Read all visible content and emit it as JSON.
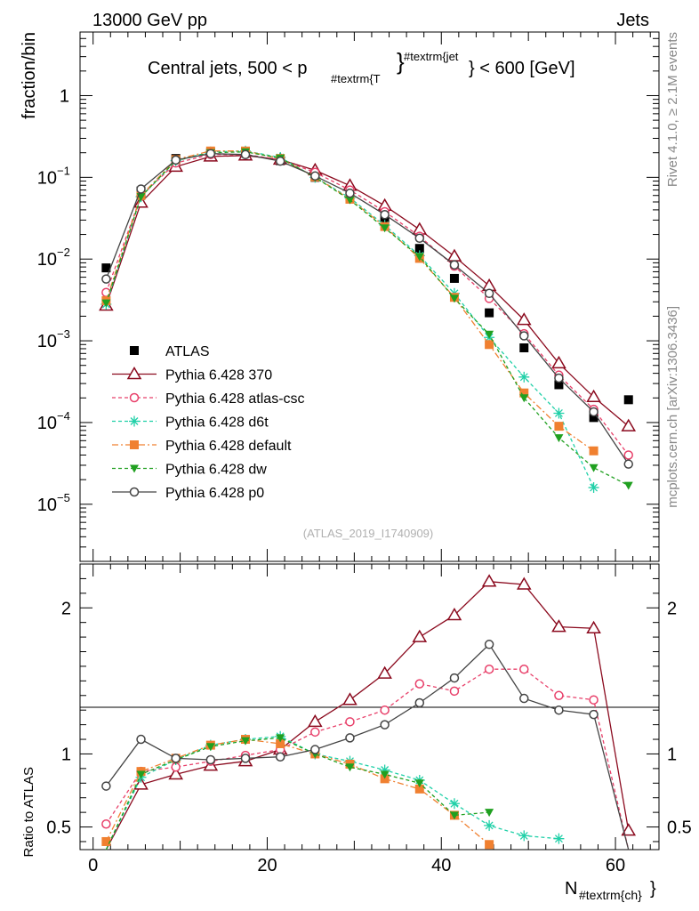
{
  "header": {
    "left": "13000 GeV pp",
    "right": "Jets"
  },
  "side": {
    "top": "Rivet 4.1.0, ≥ 2.1M events",
    "bottom": "mcplots.cern.ch [arXiv:1306.3436]"
  },
  "chart_data": [
    {
      "type": "scatter",
      "title_main": "Central jets, 500 < p",
      "title_sub": "#textrm{T",
      "title_sup": "#textrm{jet",
      "title_tail": "} < 600 [GeV]",
      "ylabel": "fraction/bin",
      "yscale": "log",
      "ylim": [
        2e-06,
        6
      ],
      "xlim": [
        -1.5,
        65
      ],
      "watermark": "(ATLAS_2019_I1740909)",
      "y_ticks": [
        {
          "v": 1,
          "label": "1"
        },
        {
          "v": 0.1,
          "label": "10",
          "exp": "−1"
        },
        {
          "v": 0.01,
          "label": "10",
          "exp": "−2"
        },
        {
          "v": 0.001,
          "label": "10",
          "exp": "−3"
        },
        {
          "v": 0.0001,
          "label": "10",
          "exp": "−4"
        },
        {
          "v": 1e-05,
          "label": "10",
          "exp": "−5"
        }
      ],
      "x": [
        1.5,
        5.5,
        9.5,
        13.5,
        17.5,
        21.5,
        25.5,
        29.5,
        33.5,
        37.5,
        41.5,
        45.5,
        49.5,
        53.5,
        57.5,
        61.5
      ],
      "series": [
        {
          "name": "ATLAS",
          "color": "#000000",
          "marker": "square",
          "dash": "none",
          "values": [
            0.0078,
            0.068,
            0.17,
            0.2,
            0.195,
            0.16,
            0.1,
            0.058,
            0.03,
            0.0135,
            0.0058,
            0.0022,
            0.00082,
            0.00029,
            0.000115,
            0.00019
          ]
        },
        {
          "name": "Pythia 6.428 370",
          "color": "#8b0a1e",
          "marker": "triangle-open",
          "dash": "none",
          "values": [
            0.0027,
            0.049,
            0.135,
            0.18,
            0.185,
            0.165,
            0.122,
            0.079,
            0.045,
            0.023,
            0.0108,
            0.0047,
            0.0018,
            0.00053,
            0.000205,
            9e-05
          ]
        },
        {
          "name": "Pythia 6.428 atlas-csc",
          "color": "#e8406a",
          "marker": "circle-open",
          "dash": "4,3",
          "values": [
            0.0039,
            0.059,
            0.15,
            0.19,
            0.19,
            0.165,
            0.115,
            0.07,
            0.038,
            0.019,
            0.0082,
            0.0033,
            0.00122,
            0.00038,
            0.000145,
            4e-05
          ]
        },
        {
          "name": "Pythia 6.428 d6t",
          "color": "#20d0a8",
          "marker": "star",
          "dash": "4,3",
          "values": [
            0.0028,
            0.058,
            0.16,
            0.205,
            0.21,
            0.175,
            0.1,
            0.056,
            0.026,
            0.011,
            0.0038,
            0.0011,
            0.00036,
            0.00013,
            1.6e-05,
            null
          ]
        },
        {
          "name": "Pythia 6.428 default",
          "color": "#f08030",
          "marker": "square",
          "dash": "7,3,2,3",
          "values": [
            0.0031,
            0.06,
            0.165,
            0.21,
            0.21,
            0.17,
            0.101,
            0.054,
            0.025,
            0.0102,
            0.0034,
            0.0009,
            0.00023,
            9e-05,
            4.5e-05,
            null
          ]
        },
        {
          "name": "Pythia 6.428 dw",
          "color": "#20a020",
          "marker": "triangle-down",
          "dash": "4,3",
          "values": [
            0.0029,
            0.058,
            0.16,
            0.2,
            0.205,
            0.172,
            0.1,
            0.053,
            0.024,
            0.0107,
            0.0033,
            0.0012,
            0.0002,
            6.5e-05,
            2.8e-05,
            1.7e-05
          ]
        },
        {
          "name": "Pythia 6.428 p0",
          "color": "#444444",
          "marker": "circle-open",
          "dash": "none",
          "values": [
            0.0057,
            0.072,
            0.163,
            0.195,
            0.19,
            0.158,
            0.104,
            0.064,
            0.035,
            0.018,
            0.0085,
            0.0038,
            0.00115,
            0.00035,
            0.000135,
            3.1e-05
          ]
        }
      ]
    },
    {
      "type": "line",
      "ylabel": "Ratio to ATLAS",
      "xlabel_main": "N",
      "xlabel_sub": "#textrm{ch}",
      "ylim": [
        0.345,
        2.3
      ],
      "xlim": [
        -1.5,
        65
      ],
      "x_ticks": [
        0,
        20,
        40,
        60
      ],
      "y_ticks": [
        {
          "v": 0.5,
          "label": "0.5"
        },
        {
          "v": 1,
          "label": "1"
        },
        {
          "v": 2,
          "label": "2"
        }
      ],
      "x": [
        1.5,
        5.5,
        9.5,
        13.5,
        17.5,
        21.5,
        25.5,
        29.5,
        33.5,
        37.5,
        41.5,
        45.5,
        49.5,
        53.5,
        57.5,
        61.5
      ],
      "series": [
        {
          "name": "Pythia 6.428 370",
          "values": [
            0.34,
            0.79,
            0.86,
            0.92,
            0.95,
            1.03,
            1.22,
            1.37,
            1.55,
            1.8,
            1.95,
            2.18,
            2.16,
            1.87,
            1.86,
            0.475
          ]
        },
        {
          "name": "Pythia 6.428 atlas-csc",
          "values": [
            0.52,
            0.88,
            0.91,
            0.95,
            0.99,
            1.03,
            1.15,
            1.22,
            1.3,
            1.48,
            1.43,
            1.58,
            1.58,
            1.4,
            1.37,
            0.2
          ]
        },
        {
          "name": "Pythia 6.428 d6t",
          "values": [
            0.34,
            0.84,
            0.96,
            1.06,
            1.1,
            1.12,
            1.0,
            0.95,
            0.89,
            0.82,
            0.66,
            0.51,
            0.44,
            0.42,
            null,
            null
          ]
        },
        {
          "name": "Pythia 6.428 default",
          "values": [
            0.4,
            0.88,
            0.97,
            1.06,
            1.1,
            1.07,
            1.0,
            0.93,
            0.83,
            0.76,
            0.58,
            0.38,
            null,
            null,
            null,
            null
          ]
        },
        {
          "name": "Pythia 6.428 dw",
          "values": [
            0.34,
            0.86,
            0.96,
            1.05,
            1.09,
            1.11,
            1.0,
            0.91,
            0.86,
            0.8,
            0.58,
            0.6,
            null,
            null,
            null,
            null
          ]
        },
        {
          "name": "Pythia 6.428 p0",
          "values": [
            0.78,
            1.1,
            0.97,
            0.96,
            0.97,
            0.98,
            1.03,
            1.11,
            1.2,
            1.35,
            1.52,
            1.75,
            1.38,
            1.3,
            1.27,
            0.15
          ]
        }
      ]
    }
  ]
}
